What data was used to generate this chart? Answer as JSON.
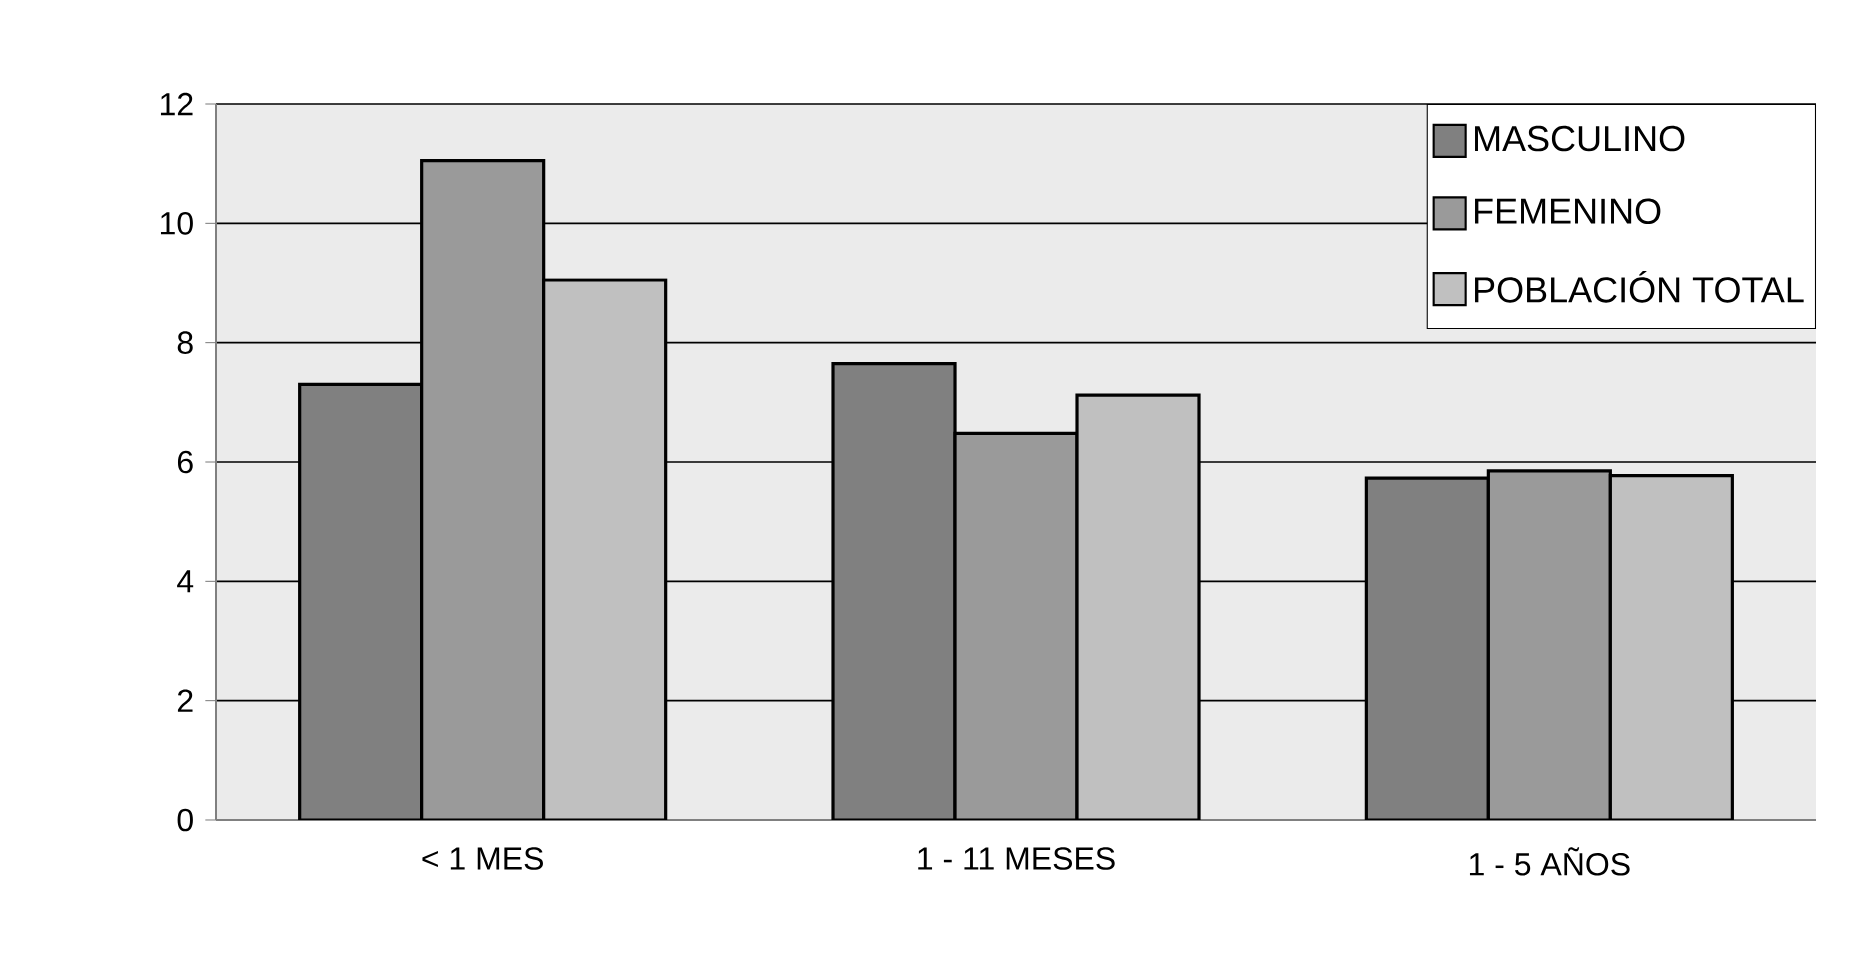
{
  "chart_data": {
    "type": "bar",
    "categories": [
      "< 1 MES",
      "1 - 11 MESES",
      "1 - 5 AÑOS"
    ],
    "series": [
      {
        "name": "MASCULINO",
        "color": "#808080",
        "values": [
          7.3,
          7.65,
          5.73
        ]
      },
      {
        "name": "FEMENINO",
        "color": "#9a9a9a",
        "values": [
          11.05,
          6.48,
          5.85
        ]
      },
      {
        "name": "POBLACIÓN TOTAL",
        "color": "#c0c0c0",
        "values": [
          9.05,
          7.12,
          5.77
        ]
      }
    ],
    "ylim": [
      0,
      12
    ],
    "yticks": [
      0,
      2,
      4,
      6,
      8,
      10,
      12
    ],
    "grid": "y",
    "legend": "top right"
  }
}
